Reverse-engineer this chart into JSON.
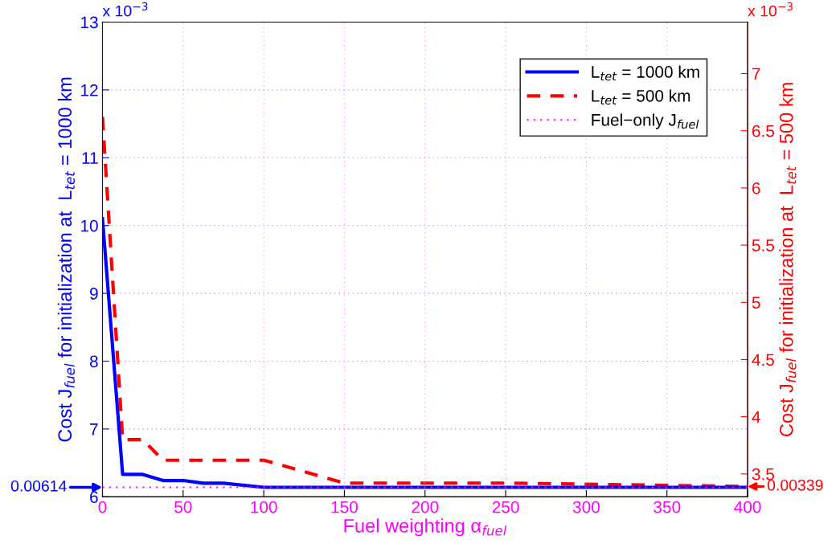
{
  "chart_data": {
    "type": "line",
    "xlabel": "Fuel weighting α$_{fuel}$",
    "ylabel": "Cost J$_{fuel}$ for initialization at  L$_{tet}$ = 1000 km",
    "y2label": "Cost J$_{fuel}$ for initialization at  L$_{tet}$ = 500 km",
    "xlim": [
      0,
      400
    ],
    "xticks": [
      0,
      50,
      100,
      150,
      200,
      250,
      300,
      350,
      400
    ],
    "ylim": [
      6,
      13
    ],
    "yticks": [
      6,
      7,
      8,
      9,
      10,
      11,
      12,
      13
    ],
    "y2lim": [
      3.3,
      7.45
    ],
    "y2ticks": [
      3.5,
      4,
      4.5,
      5,
      5.5,
      6,
      6.5,
      7
    ],
    "grid": true,
    "legend": "top right",
    "series": [
      {
        "name": "L$_{tet}$ = 1000 km",
        "color": "#0000ff",
        "line_style": "solid",
        "x": [
          0,
          12.5,
          25,
          37.5,
          50,
          62.5,
          75,
          100,
          400
        ],
        "values": [
          10.1,
          6.33,
          6.33,
          6.24,
          6.24,
          6.2,
          6.2,
          6.14,
          6.14
        ]
      },
      {
        "name": "L$_{tet}$ = 500 km",
        "color": "#ff0000",
        "line_style": "dashed",
        "axis": "y2",
        "x": [
          0,
          12.5,
          25,
          37.5,
          50,
          75,
          100,
          150,
          250,
          300,
          350,
          400
        ],
        "values": [
          6.62,
          3.8,
          3.8,
          3.62,
          3.62,
          3.62,
          3.62,
          3.42,
          3.42,
          3.41,
          3.4,
          3.39
        ]
      },
      {
        "name": "Fuel−only J$_{fuel}$",
        "color": "#ff00ff",
        "line_style": "dotted",
        "x": [
          0,
          400
        ],
        "values": [
          6.14,
          6.14
        ]
      }
    ],
    "annotations": [
      {
        "text": "0.00614",
        "x": 0,
        "y": 6.14
      },
      "0.00339",
      "x 10$^{−3}$",
      "x 10$^{−3}$"
    ]
  }
}
